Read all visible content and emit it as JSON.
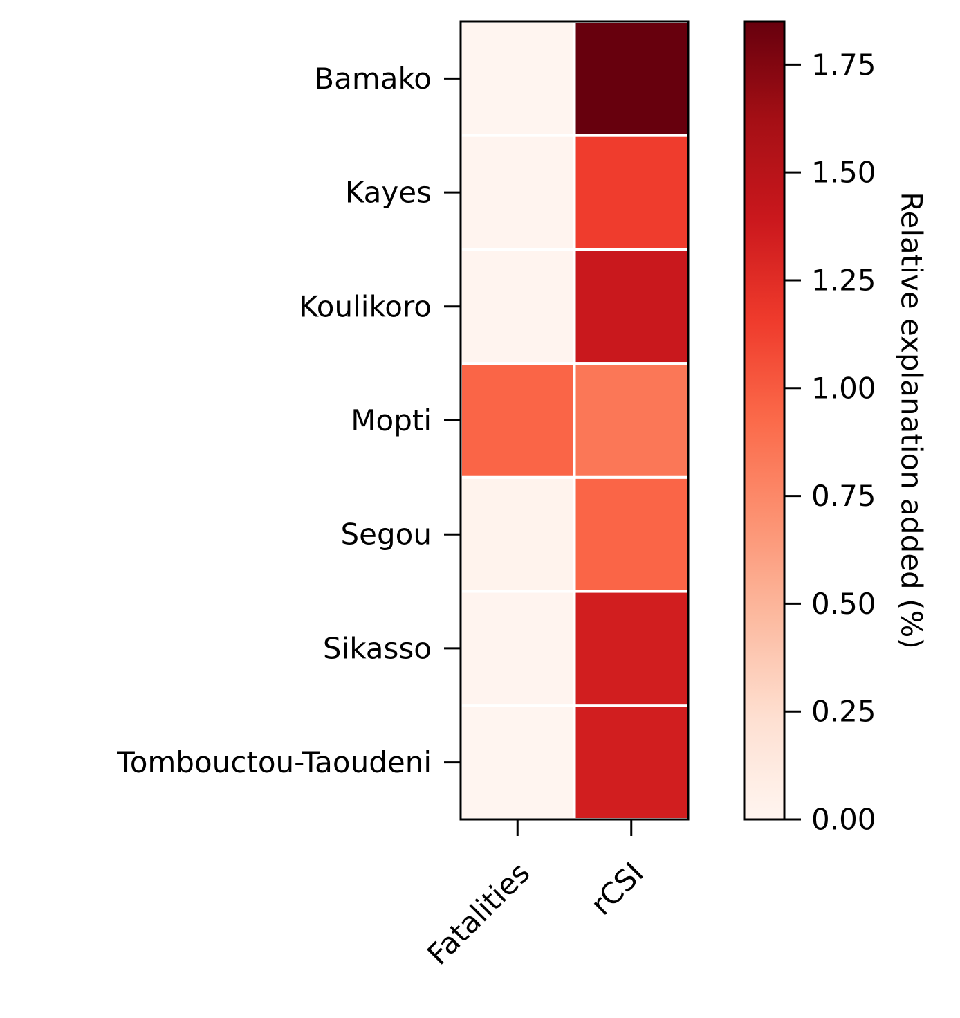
{
  "chart_data": {
    "type": "heatmap",
    "title": "",
    "xlabel": "",
    "ylabel": "",
    "columns": [
      "Fatalities",
      "rCSI"
    ],
    "rows": [
      "Bamako",
      "Kayes",
      "Koulikoro",
      "Mopti",
      "Segou",
      "Sikasso",
      "Tombouctou-Taoudeni"
    ],
    "values": [
      [
        0.0,
        1.85
      ],
      [
        0.01,
        1.15
      ],
      [
        0.01,
        1.4
      ],
      [
        0.95,
        0.85
      ],
      [
        0.02,
        0.95
      ],
      [
        0.01,
        1.35
      ],
      [
        0.0,
        1.35
      ]
    ],
    "colorbar": {
      "label": "Relative explanation added (%)",
      "range": [
        0,
        1.85
      ],
      "ticks": [
        0.0,
        0.25,
        0.5,
        0.75,
        1.0,
        1.25,
        1.5,
        1.75
      ],
      "tick_labels": [
        "0.00",
        "0.25",
        "0.50",
        "0.75",
        "1.00",
        "1.25",
        "1.50",
        "1.75"
      ],
      "colormap": "Reds"
    },
    "grid": false
  }
}
